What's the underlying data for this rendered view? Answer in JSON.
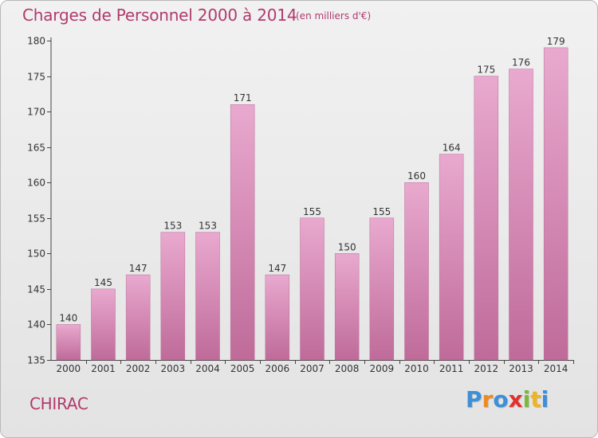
{
  "header": {
    "title": "Charges de Personnel 2000 à 2014",
    "subtitle": "(en milliers d'€)"
  },
  "footer": {
    "commune": "CHIRAC",
    "logo": [
      "P",
      "r",
      "o",
      "x",
      "i",
      "t",
      "i"
    ],
    "logo_colors": [
      "#3d8fd8",
      "#f08a1c",
      "#3d8fd8",
      "#e0312f",
      "#7cb93a",
      "#f0b51c",
      "#3d8fd8"
    ]
  },
  "colors": {
    "bar_light": "#e9a9cf",
    "bar_dark": "#bf6b99",
    "text": "#b13a6c",
    "axis": "#444444"
  },
  "chart_data": {
    "type": "bar",
    "categories": [
      "2000",
      "2001",
      "2002",
      "2003",
      "2004",
      "2005",
      "2006",
      "2007",
      "2008",
      "2009",
      "2010",
      "2011",
      "2012",
      "2013",
      "2014"
    ],
    "values": [
      140,
      145,
      147,
      153,
      153,
      171,
      147,
      155,
      150,
      155,
      160,
      164,
      175,
      176,
      179
    ],
    "data_labels": [
      "140",
      "145",
      "147",
      "153",
      "153",
      "171",
      "147",
      "155",
      "150",
      "155",
      "160",
      "164",
      "175",
      "176",
      "179"
    ],
    "ylim": [
      135,
      180
    ],
    "yticks": [
      135,
      140,
      145,
      150,
      155,
      160,
      165,
      170,
      175,
      180
    ],
    "grid": false,
    "title": "Charges de Personnel 2000 à 2014",
    "xlabel": "",
    "ylabel": ""
  }
}
